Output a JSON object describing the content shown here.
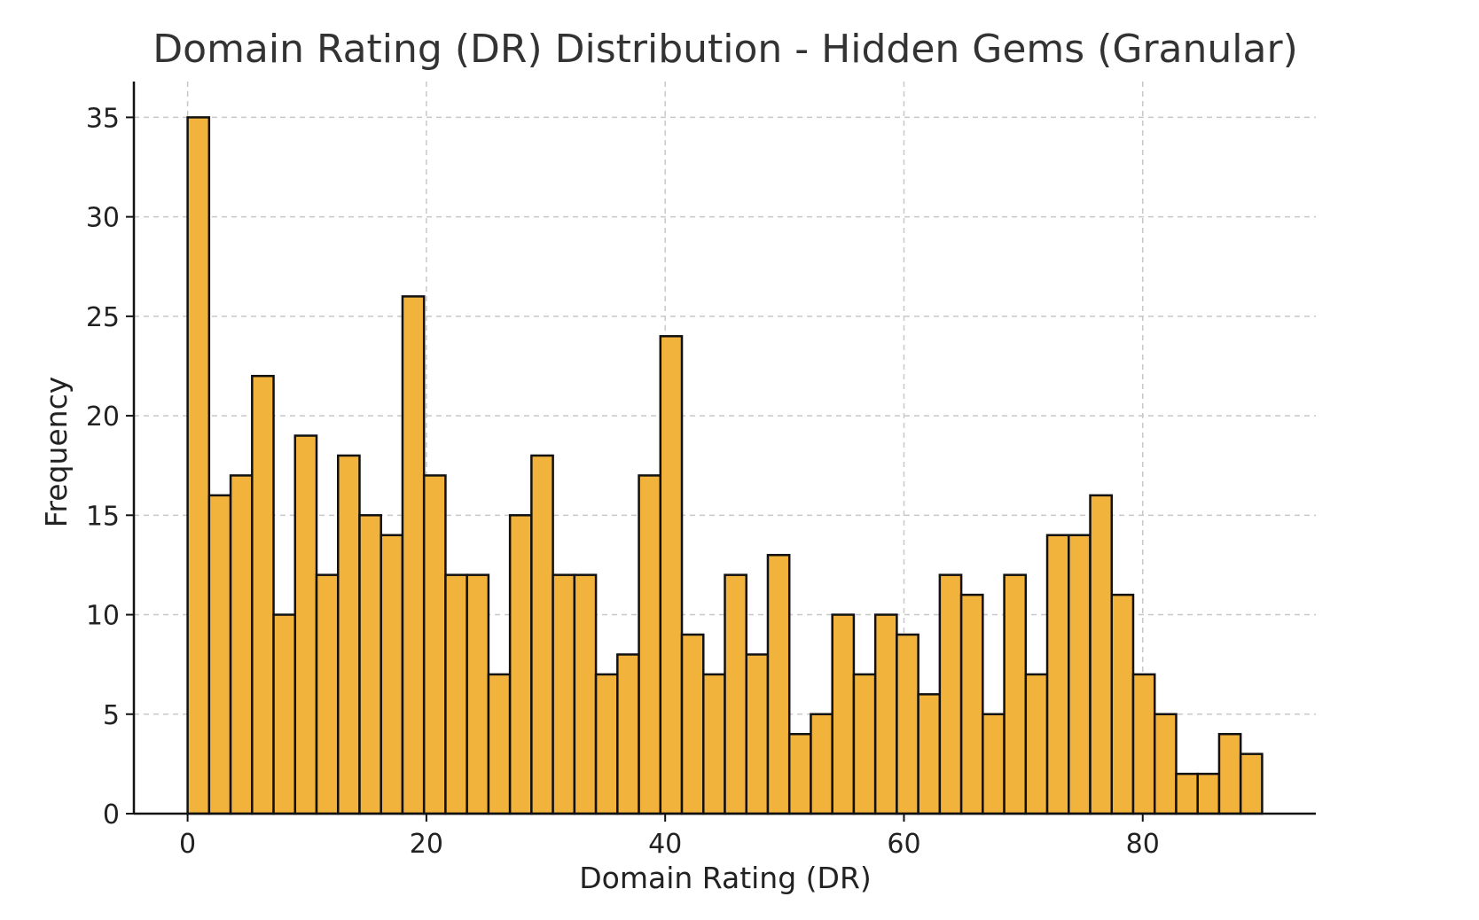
{
  "chart_data": {
    "type": "bar",
    "title": "Domain Rating (DR) Distribution - Hidden Gems (Granular)",
    "xlabel": "Domain Rating (DR)",
    "ylabel": "Frequency",
    "xlim": [
      -4.5,
      94.5
    ],
    "ylim": [
      0,
      36.8
    ],
    "xticks": [
      0,
      20,
      40,
      60,
      80
    ],
    "yticks": [
      0,
      5,
      10,
      15,
      20,
      25,
      30,
      35
    ],
    "grid": true,
    "bar_color": "#F2B33D",
    "edge_color": "#111111",
    "bin_edges": [
      0,
      1.8,
      3.6,
      5.4,
      7.2,
      9,
      10.8,
      12.6,
      14.4,
      16.2,
      18,
      19.8,
      21.6,
      23.4,
      25.2,
      27,
      28.8,
      30.6,
      32.4,
      34.2,
      36,
      37.8,
      39.6,
      41.4,
      43.2,
      45,
      46.8,
      48.6,
      50.4,
      52.2,
      54,
      55.8,
      57.6,
      59.4,
      61.2,
      63,
      64.8,
      66.6,
      68.4,
      70.2,
      72,
      73.8,
      75.6,
      77.4,
      79.2,
      81,
      82.8,
      84.6,
      86.4,
      88.2,
      90
    ],
    "values": [
      35,
      16,
      17,
      22,
      10,
      19,
      12,
      18,
      15,
      14,
      26,
      17,
      12,
      12,
      7,
      15,
      18,
      12,
      12,
      7,
      8,
      17,
      24,
      9,
      7,
      12,
      8,
      13,
      4,
      5,
      10,
      7,
      10,
      9,
      6,
      12,
      11,
      5,
      12,
      7,
      14,
      14,
      16,
      11,
      7,
      5,
      2,
      2,
      4,
      3
    ]
  }
}
